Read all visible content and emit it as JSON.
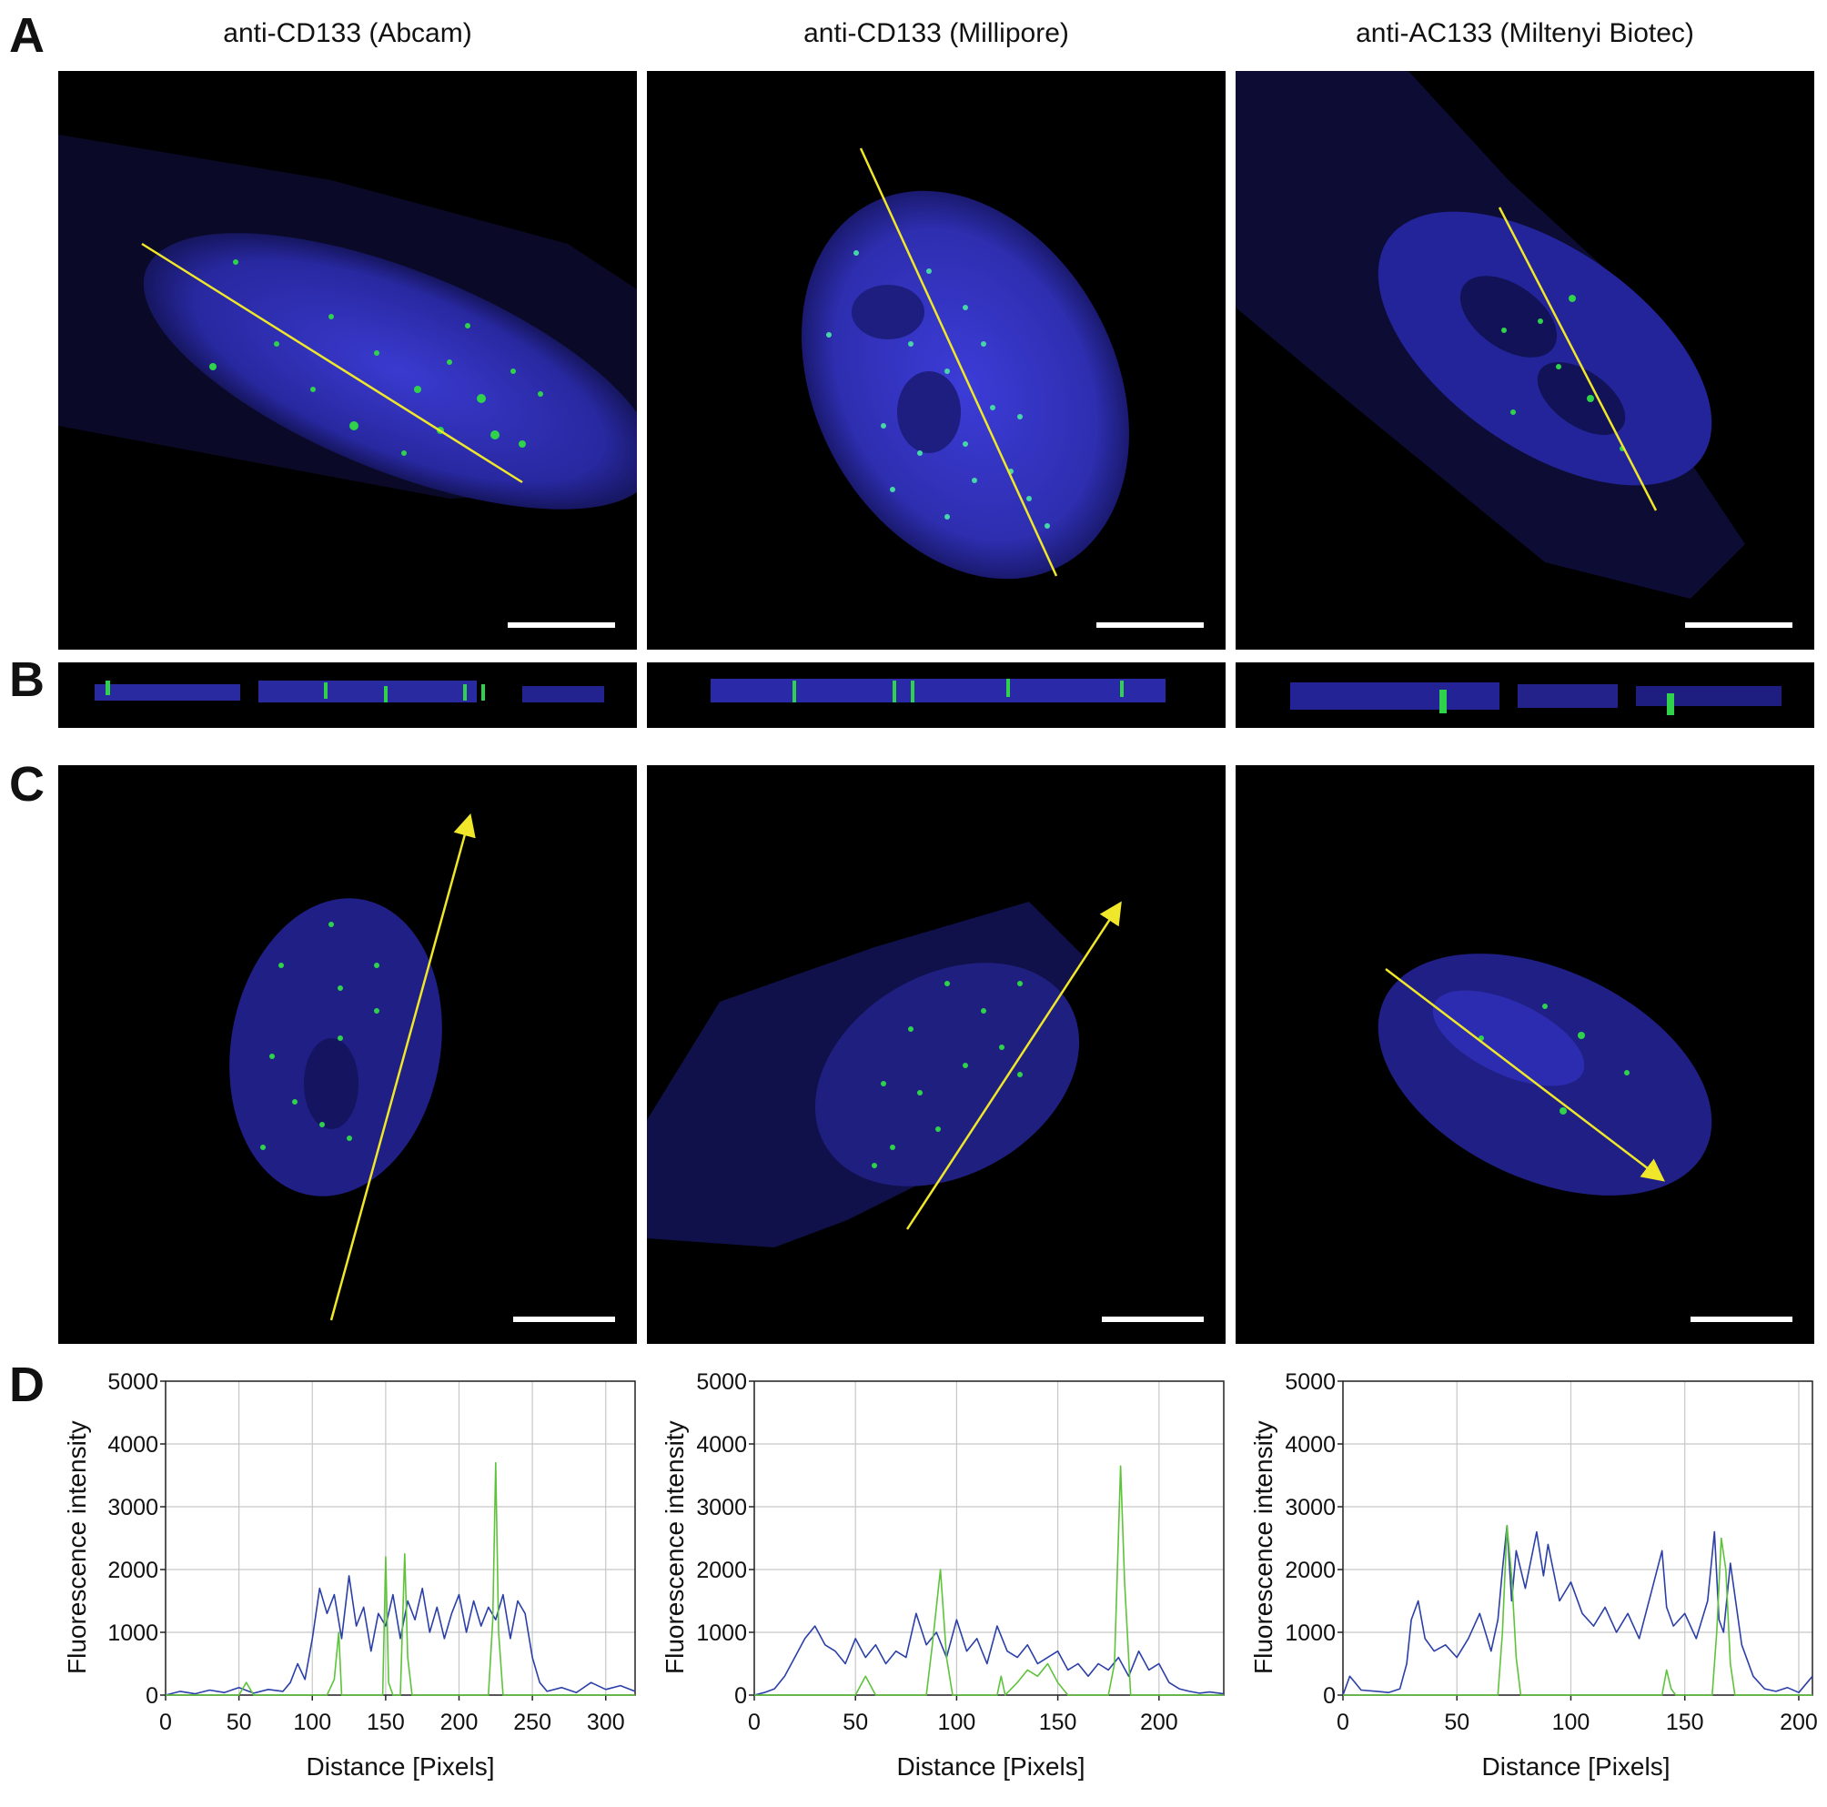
{
  "panels": {
    "a": "A",
    "b": "B",
    "c": "C",
    "d": "D"
  },
  "columns": [
    {
      "title": "anti-CD133 (Abcam)"
    },
    {
      "title": "anti-CD133 (Millipore)"
    },
    {
      "title": "anti-AC133 (Miltenyi Biotec)"
    }
  ],
  "colors": {
    "nucleus": "#2a2aa8",
    "spot": "#2fd24a",
    "line": "#f0e62a",
    "blue_series": "#2b3fa8",
    "green_series": "#5dc43a",
    "grid": "#c8c8c8"
  },
  "chart_data": [
    {
      "type": "line",
      "xlabel": "Distance [Pixels]",
      "ylabel": "Fluorescence intensity",
      "xlim": [
        0,
        320
      ],
      "ylim": [
        0,
        5000
      ],
      "xticks": [
        0,
        50,
        100,
        150,
        200,
        250,
        300
      ],
      "yticks": [
        0,
        1000,
        2000,
        3000,
        4000,
        5000
      ],
      "grid": true,
      "series": [
        {
          "color": "#2b3fa8",
          "x": [
            0,
            10,
            20,
            30,
            40,
            50,
            60,
            70,
            80,
            85,
            90,
            95,
            100,
            105,
            110,
            115,
            120,
            125,
            130,
            135,
            140,
            145,
            150,
            155,
            160,
            165,
            170,
            175,
            180,
            185,
            190,
            195,
            200,
            205,
            210,
            215,
            220,
            225,
            230,
            235,
            240,
            245,
            250,
            255,
            260,
            270,
            280,
            290,
            300,
            310,
            320
          ],
          "y": [
            0,
            60,
            20,
            80,
            40,
            120,
            30,
            90,
            60,
            200,
            500,
            250,
            900,
            1700,
            1300,
            1600,
            900,
            1900,
            1100,
            1400,
            700,
            1300,
            1100,
            1600,
            900,
            1500,
            1200,
            1700,
            1000,
            1400,
            900,
            1300,
            1600,
            1000,
            1500,
            1100,
            1400,
            1200,
            1600,
            900,
            1500,
            1300,
            600,
            200,
            60,
            120,
            40,
            200,
            90,
            150,
            60
          ]
        },
        {
          "color": "#5dc43a",
          "x": [
            0,
            50,
            55,
            60,
            100,
            110,
            115,
            118,
            120,
            130,
            148,
            150,
            152,
            155,
            160,
            163,
            165,
            168,
            170,
            180,
            220,
            223,
            225,
            227,
            230,
            240,
            250,
            320
          ],
          "y": [
            0,
            0,
            200,
            0,
            0,
            0,
            250,
            1000,
            0,
            0,
            0,
            2200,
            200,
            0,
            0,
            2250,
            600,
            0,
            0,
            0,
            0,
            1200,
            3700,
            1000,
            0,
            0,
            0,
            0
          ]
        }
      ]
    },
    {
      "type": "line",
      "xlabel": "Distance [Pixels]",
      "ylabel": "Fluorescence intensity",
      "xlim": [
        0,
        232
      ],
      "ylim": [
        0,
        5000
      ],
      "xticks": [
        0,
        50,
        100,
        150,
        200
      ],
      "yticks": [
        0,
        1000,
        2000,
        3000,
        4000,
        5000
      ],
      "grid": true,
      "series": [
        {
          "color": "#2b3fa8",
          "x": [
            0,
            5,
            10,
            15,
            20,
            25,
            30,
            35,
            40,
            45,
            50,
            55,
            60,
            65,
            70,
            75,
            80,
            85,
            90,
            95,
            100,
            105,
            110,
            115,
            120,
            125,
            130,
            135,
            140,
            145,
            150,
            155,
            160,
            165,
            170,
            175,
            180,
            185,
            190,
            195,
            200,
            205,
            210,
            215,
            220,
            225,
            232
          ],
          "y": [
            0,
            40,
            100,
            300,
            600,
            900,
            1100,
            800,
            700,
            500,
            900,
            600,
            800,
            500,
            700,
            600,
            1300,
            800,
            1000,
            600,
            1200,
            700,
            900,
            500,
            1100,
            700,
            600,
            800,
            500,
            600,
            700,
            400,
            500,
            300,
            500,
            400,
            600,
            300,
            700,
            400,
            500,
            200,
            100,
            60,
            30,
            50,
            20
          ]
        },
        {
          "color": "#5dc43a",
          "x": [
            0,
            50,
            55,
            60,
            85,
            88,
            92,
            95,
            98,
            120,
            122,
            124,
            130,
            135,
            140,
            145,
            150,
            155,
            175,
            178,
            181,
            183,
            186,
            232
          ],
          "y": [
            0,
            0,
            300,
            0,
            0,
            800,
            2000,
            600,
            0,
            0,
            300,
            0,
            200,
            400,
            300,
            500,
            200,
            0,
            0,
            500,
            3650,
            1800,
            0,
            0
          ]
        }
      ]
    },
    {
      "type": "line",
      "xlabel": "Distance [Pixels]",
      "ylabel": "Fluorescence intensity",
      "xlim": [
        0,
        206
      ],
      "ylim": [
        0,
        5000
      ],
      "xticks": [
        0,
        50,
        100,
        150,
        200
      ],
      "yticks": [
        0,
        1000,
        2000,
        3000,
        4000,
        5000
      ],
      "grid": true,
      "series": [
        {
          "color": "#2b3fa8",
          "x": [
            0,
            3,
            8,
            15,
            20,
            25,
            28,
            30,
            33,
            36,
            40,
            45,
            50,
            55,
            60,
            65,
            68,
            70,
            72,
            74,
            76,
            80,
            85,
            88,
            90,
            95,
            100,
            105,
            110,
            115,
            120,
            125,
            130,
            135,
            140,
            142,
            145,
            150,
            155,
            160,
            163,
            165,
            167,
            170,
            175,
            180,
            185,
            190,
            195,
            200,
            206
          ],
          "y": [
            0,
            300,
            80,
            60,
            40,
            100,
            500,
            1200,
            1500,
            900,
            700,
            800,
            600,
            900,
            1300,
            700,
            1200,
            2000,
            2700,
            1500,
            2300,
            1700,
            2600,
            1900,
            2400,
            1500,
            1800,
            1300,
            1100,
            1400,
            1000,
            1300,
            900,
            1600,
            2300,
            1400,
            1100,
            1300,
            900,
            1500,
            2600,
            1200,
            1000,
            2100,
            800,
            300,
            100,
            60,
            120,
            40,
            300
          ]
        },
        {
          "color": "#5dc43a",
          "x": [
            0,
            68,
            70,
            72,
            74,
            76,
            78,
            85,
            100,
            140,
            142,
            144,
            146,
            162,
            164,
            166,
            168,
            170,
            172,
            206
          ],
          "y": [
            0,
            0,
            1000,
            2700,
            1900,
            600,
            0,
            0,
            0,
            0,
            400,
            100,
            0,
            0,
            1000,
            2500,
            2000,
            500,
            0,
            0
          ]
        }
      ]
    }
  ]
}
